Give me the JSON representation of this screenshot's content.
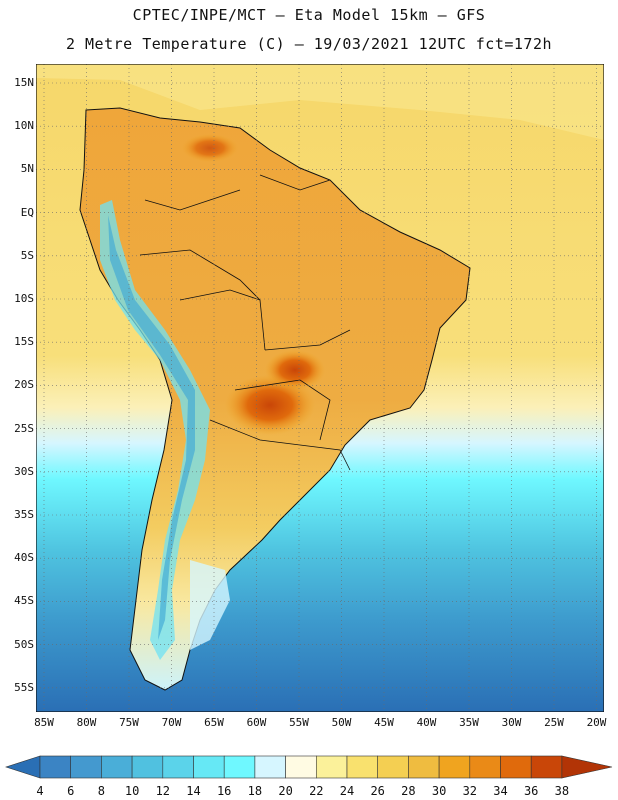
{
  "header": {
    "line1": "CPTEC/INPE/MCT –  Eta Model 15km – GFS",
    "line2": "2 Metre Temperature (C) – 19/03/2021 12UTC fct=172h"
  },
  "map": {
    "lat_labels": [
      "15N",
      "10N",
      "5N",
      "EQ",
      "5S",
      "10S",
      "15S",
      "20S",
      "25S",
      "30S",
      "35S",
      "40S",
      "45S",
      "50S",
      "55S"
    ],
    "lon_labels": [
      "85W",
      "80W",
      "75W",
      "70W",
      "65W",
      "60W",
      "55W",
      "50W",
      "45W",
      "40W",
      "35W",
      "30W",
      "25W",
      "20W"
    ]
  },
  "colorbar": {
    "ticks": [
      "4",
      "6",
      "8",
      "10",
      "12",
      "14",
      "16",
      "18",
      "20",
      "22",
      "24",
      "26",
      "28",
      "30",
      "32",
      "34",
      "36",
      "38"
    ],
    "colors": [
      "#2a6fb5",
      "#3b84c4",
      "#4499cf",
      "#4aaed8",
      "#50c1e0",
      "#5bd3ea",
      "#66e8f5",
      "#6ff8ff",
      "#d6f6ff",
      "#fffbe3",
      "#fbf19a",
      "#f9e16e",
      "#f4cf52",
      "#efbc40",
      "#f0a41f",
      "#ea8a17",
      "#e06a0c",
      "#c94608",
      "#b23406"
    ]
  }
}
